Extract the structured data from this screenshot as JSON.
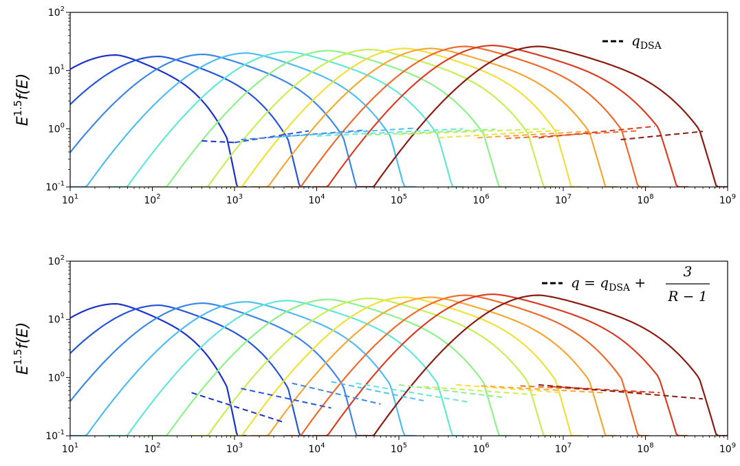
{
  "chart_data": [
    {
      "type": "line",
      "panel": "top",
      "ylabel": "E^{1.5} f(E)",
      "xscale": "log",
      "yscale": "log",
      "xlim": [
        10,
        1000000000
      ],
      "ylim": [
        0.1,
        100
      ],
      "x_ticks": [
        "10^1",
        "10^2",
        "10^3",
        "10^4",
        "10^5",
        "10^6",
        "10^7",
        "10^8",
        "10^9"
      ],
      "y_ticks": [
        "10^-1",
        "10^0",
        "10^1",
        "10^2"
      ],
      "legend": {
        "position": "top-right",
        "line_label": "q_DSA"
      },
      "spectra": [
        {
          "color": "#1a2fc7",
          "peak_E": 36,
          "peak_y": 18.5,
          "tail_E": 1400,
          "tail_y": 0.1
        },
        {
          "color": "#2454d8",
          "peak_E": 120,
          "peak_y": 17.5,
          "tail_E": 8500,
          "tail_y": 0.1
        },
        {
          "color": "#3c86e6",
          "peak_E": 420,
          "peak_y": 19,
          "tail_E": 42000,
          "tail_y": 0.1
        },
        {
          "color": "#4fbcf0",
          "peak_E": 1400,
          "peak_y": 20,
          "tail_E": 160000,
          "tail_y": 0.1
        },
        {
          "color": "#62e6d8",
          "peak_E": 4500,
          "peak_y": 21,
          "tail_E": 620000,
          "tail_y": 0.1
        },
        {
          "color": "#8ef08a",
          "peak_E": 14000,
          "peak_y": 22,
          "tail_E": 2300000,
          "tail_y": 0.1
        },
        {
          "color": "#c6ef55",
          "peak_E": 45000,
          "peak_y": 23,
          "tail_E": 8000000,
          "tail_y": 0.1
        },
        {
          "color": "#f2df3a",
          "peak_E": 120000,
          "peak_y": 24,
          "tail_E": 17000000,
          "tail_y": 0.1
        },
        {
          "color": "#f6a632",
          "peak_E": 250000,
          "peak_y": 24,
          "tail_E": 45000000,
          "tail_y": 0.1
        },
        {
          "color": "#ef6a2a",
          "peak_E": 650000,
          "peak_y": 26,
          "tail_E": 110000000,
          "tail_y": 0.1
        },
        {
          "color": "#d93c22",
          "peak_E": 1400000,
          "peak_y": 27,
          "tail_E": 330000000,
          "tail_y": 0.1
        },
        {
          "color": "#8a1a10",
          "peak_E": 5000000,
          "peak_y": 26,
          "tail_E": 1000000000,
          "tail_y": 0.1
        }
      ],
      "dashed_fits": [
        {
          "color": "#1a2fc7",
          "x": [
            400,
            1000
          ],
          "y": [
            0.62,
            0.58
          ]
        },
        {
          "color": "#2454d8",
          "x": [
            1000,
            8000
          ],
          "y": [
            0.58,
            0.92
          ]
        },
        {
          "color": "#3c86e6",
          "x": [
            1200,
            40000
          ],
          "y": [
            0.65,
            0.95
          ]
        },
        {
          "color": "#4fbcf0",
          "x": [
            3000,
            150000
          ],
          "y": [
            0.72,
            1.02
          ]
        },
        {
          "color": "#62e6d8",
          "x": [
            10000,
            600000
          ],
          "y": [
            0.75,
            1.0
          ]
        },
        {
          "color": "#8ef08a",
          "x": [
            40000,
            1500000
          ],
          "y": [
            0.78,
            0.98
          ]
        },
        {
          "color": "#c6ef55",
          "x": [
            100000,
            6000000
          ],
          "y": [
            0.8,
            1.0
          ]
        },
        {
          "color": "#f2df3a",
          "x": [
            300000,
            10000000
          ],
          "y": [
            0.7,
            0.95
          ]
        },
        {
          "color": "#f6a632",
          "x": [
            900000,
            20000000
          ],
          "y": [
            0.7,
            0.9
          ]
        },
        {
          "color": "#ef6a2a",
          "x": [
            2000000,
            80000000
          ],
          "y": [
            0.68,
            0.92
          ]
        },
        {
          "color": "#d93c22",
          "x": [
            5000000,
            130000000
          ],
          "y": [
            0.7,
            1.1
          ]
        },
        {
          "color": "#8a1a10",
          "x": [
            50000000,
            500000000
          ],
          "y": [
            0.65,
            0.9
          ]
        }
      ]
    },
    {
      "type": "line",
      "panel": "bottom",
      "ylabel": "E^{1.5} f(E)",
      "xscale": "log",
      "yscale": "log",
      "xlim": [
        10,
        1000000000
      ],
      "ylim": [
        0.1,
        100
      ],
      "x_ticks": [
        "10^1",
        "10^2",
        "10^3",
        "10^4",
        "10^5",
        "10^6",
        "10^7",
        "10^8",
        "10^9"
      ],
      "y_ticks": [
        "10^-1",
        "10^0",
        "10^1",
        "10^2"
      ],
      "legend": {
        "position": "top-right",
        "line_label": "q = q_DSA + 3/(R − 1)"
      },
      "dashed_fits": [
        {
          "color": "#1a2fc7",
          "x": [
            300,
            4000
          ],
          "y": [
            0.55,
            0.17
          ]
        },
        {
          "color": "#2454d8",
          "x": [
            1200,
            15000
          ],
          "y": [
            0.65,
            0.3
          ]
        },
        {
          "color": "#3c86e6",
          "x": [
            5000,
            60000
          ],
          "y": [
            0.8,
            0.35
          ]
        },
        {
          "color": "#4fbcf0",
          "x": [
            15000,
            200000
          ],
          "y": [
            0.85,
            0.4
          ]
        },
        {
          "color": "#62e6d8",
          "x": [
            30000,
            700000
          ],
          "y": [
            0.8,
            0.38
          ]
        },
        {
          "color": "#8ef08a",
          "x": [
            100000,
            2000000
          ],
          "y": [
            0.75,
            0.45
          ]
        },
        {
          "color": "#c6ef55",
          "x": [
            200000,
            5000000
          ],
          "y": [
            0.7,
            0.5
          ]
        },
        {
          "color": "#f2df3a",
          "x": [
            500000,
            10000000
          ],
          "y": [
            0.75,
            0.55
          ]
        },
        {
          "color": "#f6a632",
          "x": [
            1000000,
            30000000
          ],
          "y": [
            0.72,
            0.55
          ]
        },
        {
          "color": "#ef6a2a",
          "x": [
            3000000,
            100000000
          ],
          "y": [
            0.72,
            0.55
          ]
        },
        {
          "color": "#d93c22",
          "x": [
            7000000,
            150000000
          ],
          "y": [
            0.7,
            0.55
          ]
        },
        {
          "color": "#8a1a10",
          "x": [
            5000000,
            500000000
          ],
          "y": [
            0.75,
            0.43
          ]
        }
      ]
    }
  ]
}
